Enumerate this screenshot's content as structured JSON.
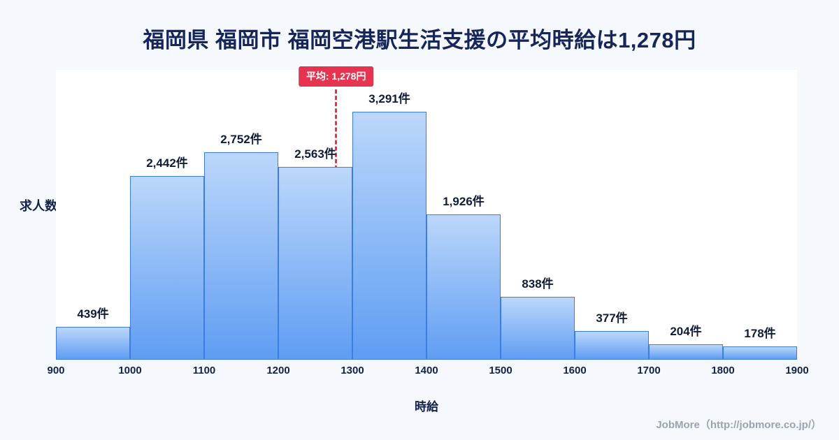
{
  "page": {
    "title": "福岡県 福岡市 福岡空港駅生活支援の平均時給は1,278円",
    "footer": "JobMore（http://jobmore.co.jp/）"
  },
  "chart_data": {
    "type": "bar",
    "subtype": "histogram",
    "title": "福岡県 福岡市 福岡空港駅生活支援の平均時給は1,278円",
    "xlabel": "時給",
    "ylabel": "求人数",
    "bin_edges": [
      900,
      1000,
      1100,
      1200,
      1300,
      1400,
      1500,
      1600,
      1700,
      1800,
      1900
    ],
    "categories": [
      "900-1000",
      "1000-1100",
      "1100-1200",
      "1200-1300",
      "1300-1400",
      "1400-1500",
      "1500-1600",
      "1600-1700",
      "1700-1800",
      "1800-1900"
    ],
    "values": [
      439,
      2442,
      2752,
      2563,
      3291,
      1926,
      838,
      377,
      204,
      178
    ],
    "value_labels": [
      "439件",
      "2,442件",
      "2,752件",
      "2,563件",
      "3,291件",
      "1,926件",
      "838件",
      "377件",
      "204件",
      "178件"
    ],
    "mean": 1278,
    "mean_label": "平均: 1,278円",
    "x_range": [
      900,
      1900
    ],
    "ylim": [
      0,
      3291
    ],
    "grid": false,
    "legend": "none",
    "colors": {
      "background": "#f5f8fd",
      "plot_background": "#ffffff",
      "bar_gradient_top": "#bcd7fb",
      "bar_gradient_bottom": "#5f9df3",
      "bar_border": "#3b7de4",
      "mean_line": "#e63450",
      "title_text": "#16265a",
      "axis_text": "#13224a",
      "footer_text": "#9aa4b0"
    }
  }
}
